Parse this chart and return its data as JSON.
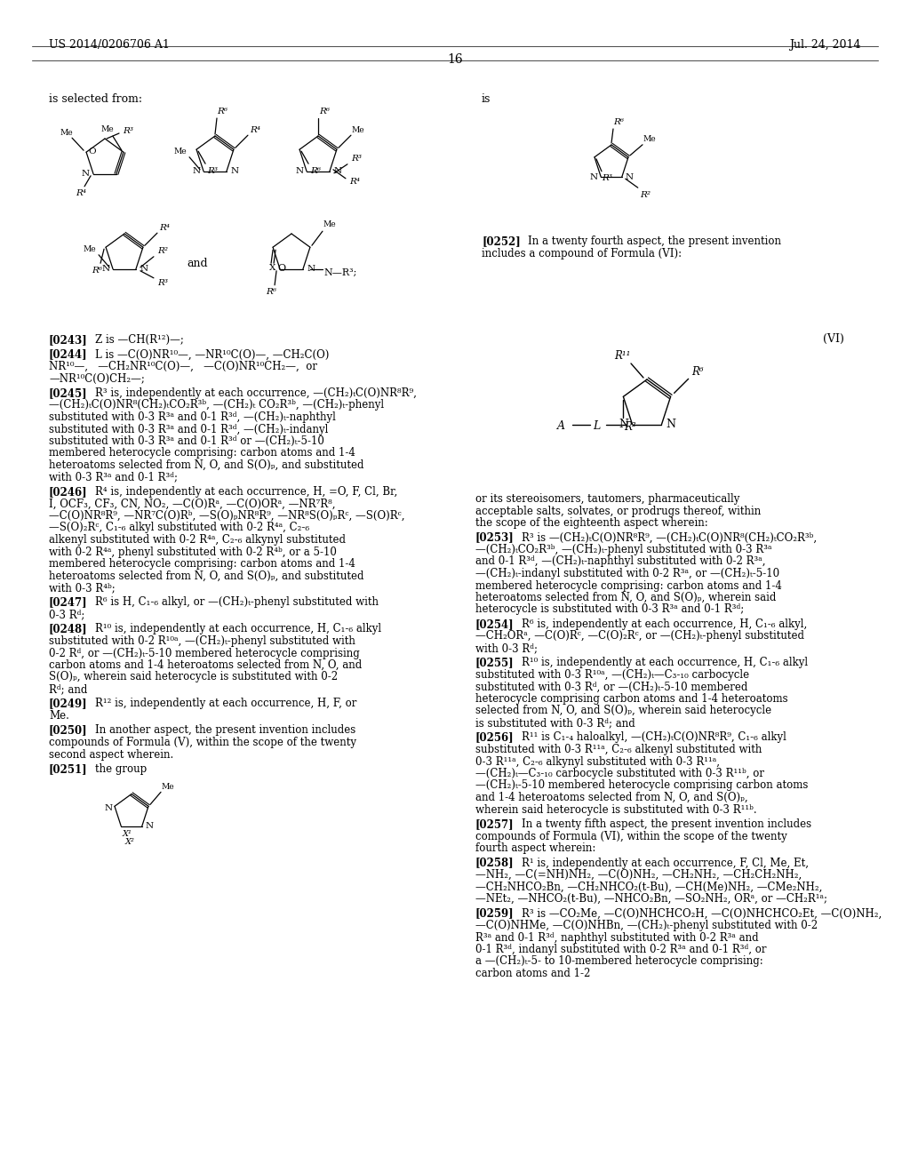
{
  "bg_color": "#ffffff",
  "header_left": "US 2014/0206706 A1",
  "header_right": "Jul. 24, 2014",
  "page_number": "16"
}
